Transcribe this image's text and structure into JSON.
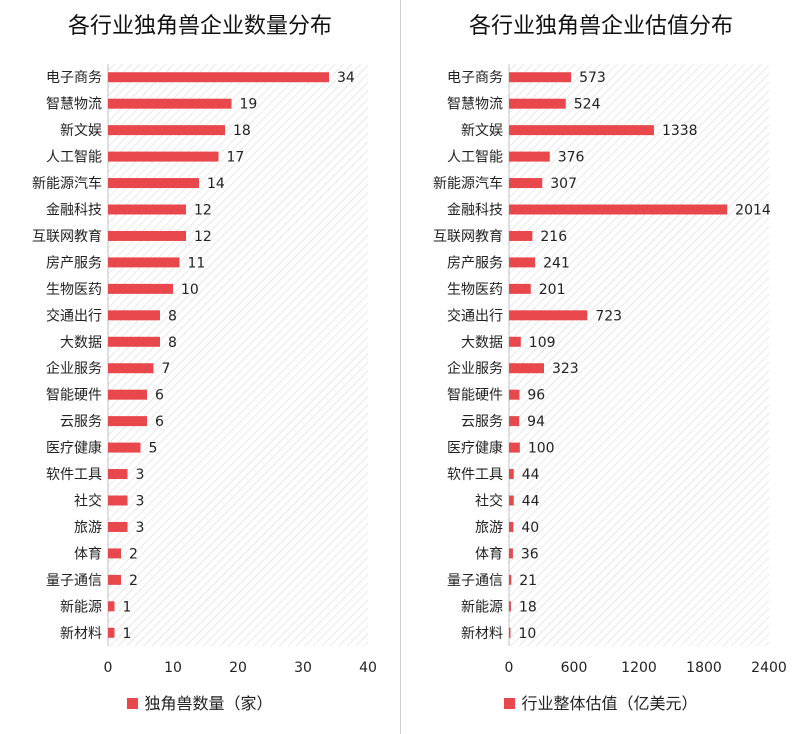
{
  "colors": {
    "bar": "#e8474b",
    "hatch": "#d9d9d9",
    "text": "#222222"
  },
  "chart_data": [
    {
      "type": "bar",
      "orientation": "horizontal",
      "title": "各行业独角兽企业数量分布",
      "categories": [
        "电子商务",
        "智慧物流",
        "新文娱",
        "人工智能",
        "新能源汽车",
        "金融科技",
        "互联网教育",
        "房产服务",
        "生物医药",
        "交通出行",
        "大数据",
        "企业服务",
        "智能硬件",
        "云服务",
        "医疗健康",
        "软件工具",
        "社交",
        "旅游",
        "体育",
        "量子通信",
        "新能源",
        "新材料"
      ],
      "series": [
        {
          "name": "独角兽数量（家）",
          "values": [
            34,
            19,
            18,
            17,
            14,
            12,
            12,
            11,
            10,
            8,
            8,
            7,
            6,
            6,
            5,
            3,
            3,
            3,
            2,
            2,
            1,
            1
          ]
        }
      ],
      "xlim": [
        0,
        40
      ],
      "xticks": [
        0,
        10,
        20,
        30,
        40
      ],
      "legend_position": "bottom"
    },
    {
      "type": "bar",
      "orientation": "horizontal",
      "title": "各行业独角兽企业估值分布",
      "categories": [
        "电子商务",
        "智慧物流",
        "新文娱",
        "人工智能",
        "新能源汽车",
        "金融科技",
        "互联网教育",
        "房产服务",
        "生物医药",
        "交通出行",
        "大数据",
        "企业服务",
        "智能硬件",
        "云服务",
        "医疗健康",
        "软件工具",
        "社交",
        "旅游",
        "体育",
        "量子通信",
        "新能源",
        "新材料"
      ],
      "series": [
        {
          "name": "行业整体估值（亿美元）",
          "values": [
            573,
            524,
            1338,
            376,
            307,
            2014,
            216,
            241,
            201,
            723,
            109,
            323,
            96,
            94,
            100,
            44,
            44,
            40,
            36,
            21,
            18,
            10
          ]
        }
      ],
      "xlim": [
        0,
        2400
      ],
      "xticks": [
        0,
        600,
        1200,
        1800,
        2400
      ],
      "legend_position": "bottom"
    }
  ]
}
